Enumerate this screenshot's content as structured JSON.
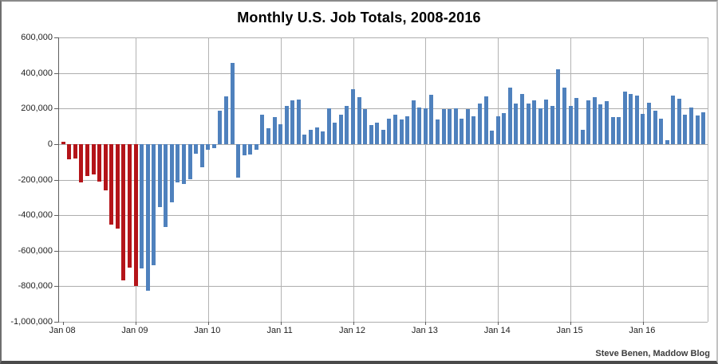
{
  "title": "Monthly U.S. Job Totals, 2008-2016",
  "credit": "Steve Benen, Maddow Blog",
  "chart_data": {
    "type": "bar",
    "title": "Monthly U.S. Job Totals, 2008-2016",
    "unit": "net jobs added per month",
    "legend": "none",
    "grid": "on",
    "x_axis": {
      "start": "Jan 2008",
      "end": "Nov 2016",
      "tick_labels": [
        "Jan 08",
        "Jan 09",
        "Jan 10",
        "Jan 11",
        "Jan 12",
        "Jan 13",
        "Jan 14",
        "Jan 15",
        "Jan 16"
      ]
    },
    "y_axis": {
      "min": -1000000,
      "max": 600000,
      "step": 200000,
      "tick_labels": [
        "600,000",
        "400,000",
        "200,000",
        "0",
        "-200,000",
        "-400,000",
        "-600,000",
        "-800,000",
        "-1,000,000"
      ]
    },
    "colors": {
      "bar_red": "#b41419",
      "bar_blue": "#4f81bd",
      "red_bar_count": 13,
      "red_span": "Jan 2008 - Jan 2009",
      "blue_span": "Feb 2009 - Nov 2016"
    },
    "series": [
      {
        "year": 2008,
        "values": [
          15000,
          -86000,
          -80000,
          -214000,
          -182000,
          -172000,
          -210000,
          -259000,
          -452000,
          -474000,
          -765000,
          -697000
        ]
      },
      {
        "year": 2009,
        "values": [
          -798000,
          -701000,
          -826000,
          -684000,
          -354000,
          -467000,
          -327000,
          -216000,
          -227000,
          -198000,
          -55000,
          -130000
        ]
      },
      {
        "year": 2010,
        "values": [
          -30000,
          -25000,
          190000,
          270000,
          455000,
          -190000,
          -65000,
          -60000,
          -30000,
          165000,
          90000,
          150000
        ]
      },
      {
        "year": 2011,
        "values": [
          110000,
          216000,
          246000,
          251000,
          55000,
          80000,
          95000,
          70000,
          200000,
          120000,
          165000,
          215000
        ]
      },
      {
        "year": 2012,
        "values": [
          310000,
          265000,
          195000,
          105000,
          120000,
          80000,
          145000,
          165000,
          140000,
          155000,
          245000,
          205000
        ]
      },
      {
        "year": 2013,
        "values": [
          200000,
          278000,
          140000,
          195000,
          195000,
          200000,
          145000,
          195000,
          155000,
          230000,
          270000,
          75000
        ]
      },
      {
        "year": 2014,
        "values": [
          155000,
          175000,
          320000,
          230000,
          280000,
          230000,
          245000,
          200000,
          250000,
          215000,
          423000,
          320000
        ]
      },
      {
        "year": 2015,
        "values": [
          215000,
          260000,
          80000,
          245000,
          265000,
          225000,
          240000,
          150000,
          150000,
          295000,
          280000,
          271000
        ]
      },
      {
        "year": 2016,
        "values": [
          168000,
          233000,
          186000,
          144000,
          24000,
          271000,
          255000,
          167000,
          208000,
          161000,
          178000
        ]
      }
    ]
  }
}
